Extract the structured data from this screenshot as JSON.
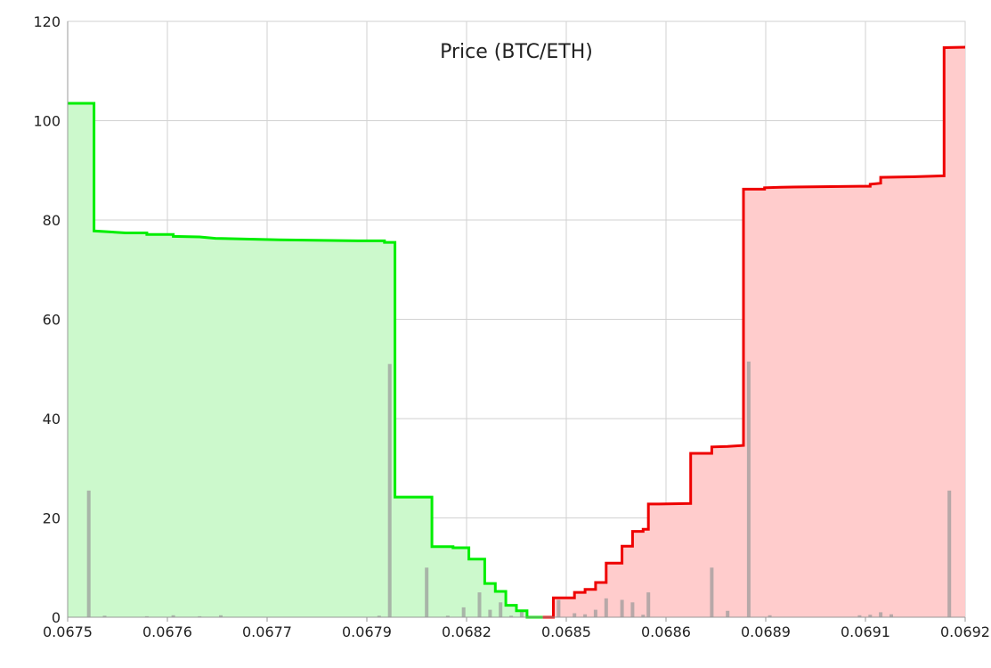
{
  "chart_data": {
    "type": "area",
    "title": "Price (BTC/ETH)",
    "xlabel": "",
    "ylabel": "",
    "xlim": [
      0.0675,
      0.0692
    ],
    "ylim": [
      0,
      120
    ],
    "grid": true,
    "x_tick_labels": [
      "0.0675",
      "0.0676",
      "0.0677",
      "0.0679",
      "0.0682",
      "0.0685",
      "0.0686",
      "0.0689",
      "0.0691",
      "0.0692"
    ],
    "y_ticks": [
      0,
      20,
      40,
      60,
      80,
      100,
      120
    ],
    "series": [
      {
        "role": "bids",
        "color": "#00ee00",
        "fill": "#ccf9cc",
        "points": [
          [
            0.0675,
            103.5
          ],
          [
            0.06755,
            103.5
          ],
          [
            0.06755,
            77.8
          ],
          [
            0.06761,
            77.4
          ],
          [
            0.06765,
            77.4
          ],
          [
            0.06765,
            77.1
          ],
          [
            0.0677,
            77.1
          ],
          [
            0.0677,
            76.7
          ],
          [
            0.06775,
            76.6
          ],
          [
            0.06778,
            76.3
          ],
          [
            0.0679,
            76.0
          ],
          [
            0.06805,
            75.8
          ],
          [
            0.0681,
            75.8
          ],
          [
            0.0681,
            75.5
          ],
          [
            0.06812,
            75.5
          ],
          [
            0.06812,
            24.2
          ],
          [
            0.06819,
            24.2
          ],
          [
            0.06819,
            14.2
          ],
          [
            0.06823,
            14.2
          ],
          [
            0.06823,
            14.0
          ],
          [
            0.06826,
            14.0
          ],
          [
            0.06826,
            11.7
          ],
          [
            0.06829,
            11.7
          ],
          [
            0.06829,
            6.8
          ],
          [
            0.06831,
            6.8
          ],
          [
            0.06831,
            5.2
          ],
          [
            0.06833,
            5.2
          ],
          [
            0.06833,
            2.4
          ],
          [
            0.06835,
            2.4
          ],
          [
            0.06835,
            1.3
          ],
          [
            0.06837,
            1.3
          ],
          [
            0.06837,
            0.0
          ],
          [
            0.0684,
            0.0
          ]
        ]
      },
      {
        "role": "asks",
        "color": "#ee0000",
        "fill": "#ffcccc",
        "points": [
          [
            0.0684,
            0.0
          ],
          [
            0.06842,
            0.0
          ],
          [
            0.06842,
            3.9
          ],
          [
            0.06846,
            3.9
          ],
          [
            0.06846,
            5.0
          ],
          [
            0.06848,
            5.0
          ],
          [
            0.06848,
            5.6
          ],
          [
            0.0685,
            5.6
          ],
          [
            0.0685,
            7.0
          ],
          [
            0.06852,
            7.0
          ],
          [
            0.06852,
            10.9
          ],
          [
            0.06855,
            10.9
          ],
          [
            0.06855,
            14.3
          ],
          [
            0.06857,
            14.3
          ],
          [
            0.06857,
            17.3
          ],
          [
            0.06859,
            17.3
          ],
          [
            0.06859,
            17.7
          ],
          [
            0.0686,
            17.7
          ],
          [
            0.0686,
            22.8
          ],
          [
            0.06862,
            22.8
          ],
          [
            0.06868,
            22.9
          ],
          [
            0.06868,
            33.0
          ],
          [
            0.06872,
            33.0
          ],
          [
            0.06872,
            34.3
          ],
          [
            0.06875,
            34.4
          ],
          [
            0.06878,
            34.6
          ],
          [
            0.06878,
            86.2
          ],
          [
            0.06882,
            86.2
          ],
          [
            0.06882,
            86.5
          ],
          [
            0.06885,
            86.6
          ],
          [
            0.069,
            86.8
          ],
          [
            0.06902,
            86.8
          ],
          [
            0.06902,
            87.2
          ],
          [
            0.06904,
            87.4
          ],
          [
            0.06904,
            88.6
          ],
          [
            0.0691,
            88.7
          ],
          [
            0.06916,
            88.9
          ],
          [
            0.06916,
            114.7
          ],
          [
            0.0692,
            114.8
          ]
        ]
      }
    ],
    "volume_bars": {
      "color": "#999999",
      "points": [
        [
          0.06754,
          25.5
        ],
        [
          0.06757,
          0.3
        ],
        [
          0.06765,
          0.2
        ],
        [
          0.0677,
          0.4
        ],
        [
          0.06775,
          0.2
        ],
        [
          0.06779,
          0.4
        ],
        [
          0.06809,
          0.3
        ],
        [
          0.06811,
          51.0
        ],
        [
          0.06818,
          10.0
        ],
        [
          0.06822,
          0.3
        ],
        [
          0.06825,
          2.0
        ],
        [
          0.06828,
          5.0
        ],
        [
          0.0683,
          1.5
        ],
        [
          0.06832,
          3.0
        ],
        [
          0.06834,
          0.3
        ],
        [
          0.06836,
          1.5
        ],
        [
          0.06843,
          3.5
        ],
        [
          0.06846,
          0.8
        ],
        [
          0.06848,
          0.6
        ],
        [
          0.0685,
          1.5
        ],
        [
          0.06852,
          3.8
        ],
        [
          0.06855,
          3.5
        ],
        [
          0.06857,
          3.0
        ],
        [
          0.06859,
          0.5
        ],
        [
          0.0686,
          5.0
        ],
        [
          0.06872,
          10.0
        ],
        [
          0.06875,
          1.3
        ],
        [
          0.06879,
          51.5
        ],
        [
          0.06883,
          0.4
        ],
        [
          0.069,
          0.4
        ],
        [
          0.06902,
          0.5
        ],
        [
          0.06904,
          1.0
        ],
        [
          0.06906,
          0.6
        ],
        [
          0.06917,
          25.5
        ]
      ]
    }
  }
}
